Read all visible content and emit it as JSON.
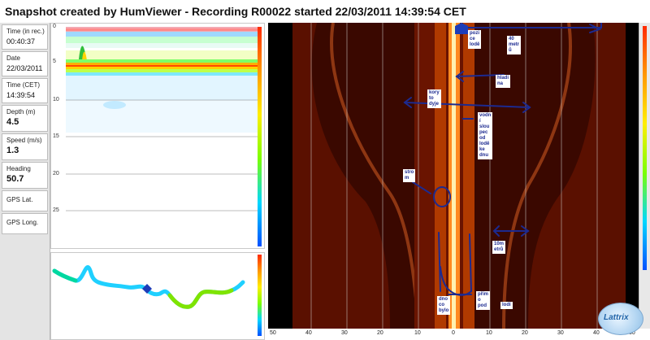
{
  "title": "Snapshot created by HumViewer - Recording R00022 started 22/03/2011 14:39:54 CET",
  "info": [
    {
      "label": "Time (in rec.)",
      "value": "00:40:37",
      "big": false
    },
    {
      "label": "Date",
      "value": "22/03/2011",
      "big": false
    },
    {
      "label": "Time (CET)",
      "value": "14:39:54",
      "big": false
    },
    {
      "label": "Depth (m)",
      "value": "4.5",
      "big": true
    },
    {
      "label": "Speed (m/s)",
      "value": "1.3",
      "big": true
    },
    {
      "label": "Heading",
      "value": "50.7",
      "big": true
    },
    {
      "label": "GPS Lat.",
      "value": "",
      "big": false
    },
    {
      "label": "GPS Long.",
      "value": "",
      "big": false
    }
  ],
  "depth_ticks": [
    "0",
    "5",
    "10",
    "15",
    "20",
    "25"
  ],
  "side_scan_axis": [
    "50",
    "40",
    "30",
    "20",
    "10",
    "0",
    "10",
    "20",
    "30",
    "40",
    "50"
  ],
  "annotations": {
    "pozice_lode": "pozi\nce\nlodě",
    "metru_40": "40\nmetr\nů",
    "hladina": "hladi\nna",
    "koryto_dyje": "kory\nto\ndyje",
    "vodni_sloupec": "vodn\ní\nslou\npec\nod\nlodě\nke\ndnu",
    "strom": "stro\nm",
    "metru_10": "10m\netrů",
    "dno_co_bylo": "dno\nco\nbylo",
    "primo_pod_lodi": "přím\no\npod",
    "lodi": "lodí"
  },
  "logo": {
    "text": "Lattrix"
  },
  "icons": {
    "boat": "boat-icon",
    "marker": "position-marker-icon"
  },
  "colors": {
    "annotation": "#1c2a90",
    "sonar_bg": "#3a0800",
    "accent": "#ff7a1a"
  }
}
